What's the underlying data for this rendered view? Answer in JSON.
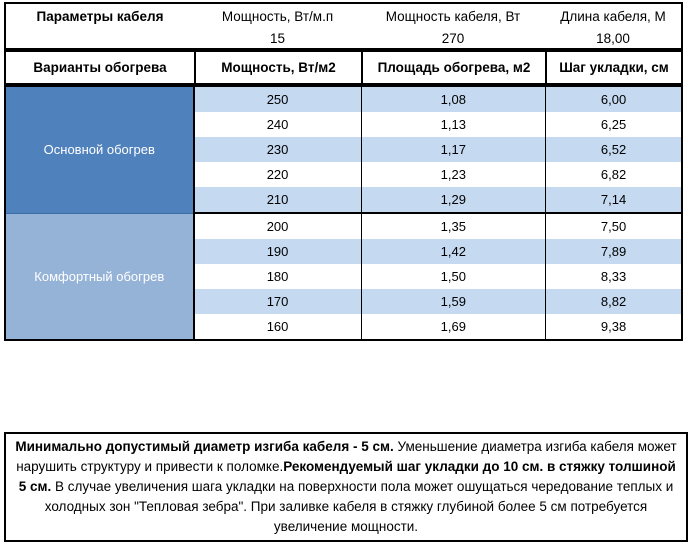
{
  "colors": {
    "group_fills": [
      "#4f81bd",
      "#95b3d7"
    ],
    "group_divider": "#3d6da6",
    "stripe": "#c5d9f1",
    "border": "#000000"
  },
  "cable_params": {
    "title": "Параметры кабеля",
    "columns": [
      {
        "label": "Мощность, Вт/м.п",
        "value": "15"
      },
      {
        "label": "Мощность кабеля, Вт",
        "value": "270"
      },
      {
        "label": "Длина кабеля, М",
        "value": "18,00"
      }
    ]
  },
  "heating_table": {
    "headers": [
      "Варианты обогрева",
      "Мощность, Вт/м2",
      "Площадь обогрева, м2",
      "Шаг укладки, см"
    ],
    "groups": [
      {
        "label": "Основной обогрев",
        "rows": [
          {
            "power": "250",
            "area": "1,08",
            "step": "6,00"
          },
          {
            "power": "240",
            "area": "1,13",
            "step": "6,25"
          },
          {
            "power": "230",
            "area": "1,17",
            "step": "6,52"
          },
          {
            "power": "220",
            "area": "1,23",
            "step": "6,82"
          },
          {
            "power": "210",
            "area": "1,29",
            "step": "7,14"
          }
        ]
      },
      {
        "label": "Комфортный обогрев",
        "rows": [
          {
            "power": "200",
            "area": "1,35",
            "step": "7,50"
          },
          {
            "power": "190",
            "area": "1,42",
            "step": "7,89"
          },
          {
            "power": "180",
            "area": "1,50",
            "step": "8,33"
          },
          {
            "power": "170",
            "area": "1,59",
            "step": "8,82"
          },
          {
            "power": "160",
            "area": "1,69",
            "step": "9,38"
          }
        ]
      }
    ]
  },
  "note": {
    "segments": [
      {
        "bold": true,
        "text": "Минимально допустимый диаметр изгиба кабеля - 5 см."
      },
      {
        "bold": false,
        "text": "  Уменьшение диаметра изгиба кабеля может нарушить структуру и привести к поломке."
      },
      {
        "bold": true,
        "text": "Рекомендуемый шаг укладки до 10 см. в стяжку толшиной 5 см."
      },
      {
        "bold": false,
        "text": " В  случае увеличения шага укладки на поверхности пола может ошущаться чередование теплых и холодных зон \"Тепловая зебра\". При заливке кабеля в стяжку глубиной более 5 см потребуется увеличение мощности."
      }
    ]
  }
}
